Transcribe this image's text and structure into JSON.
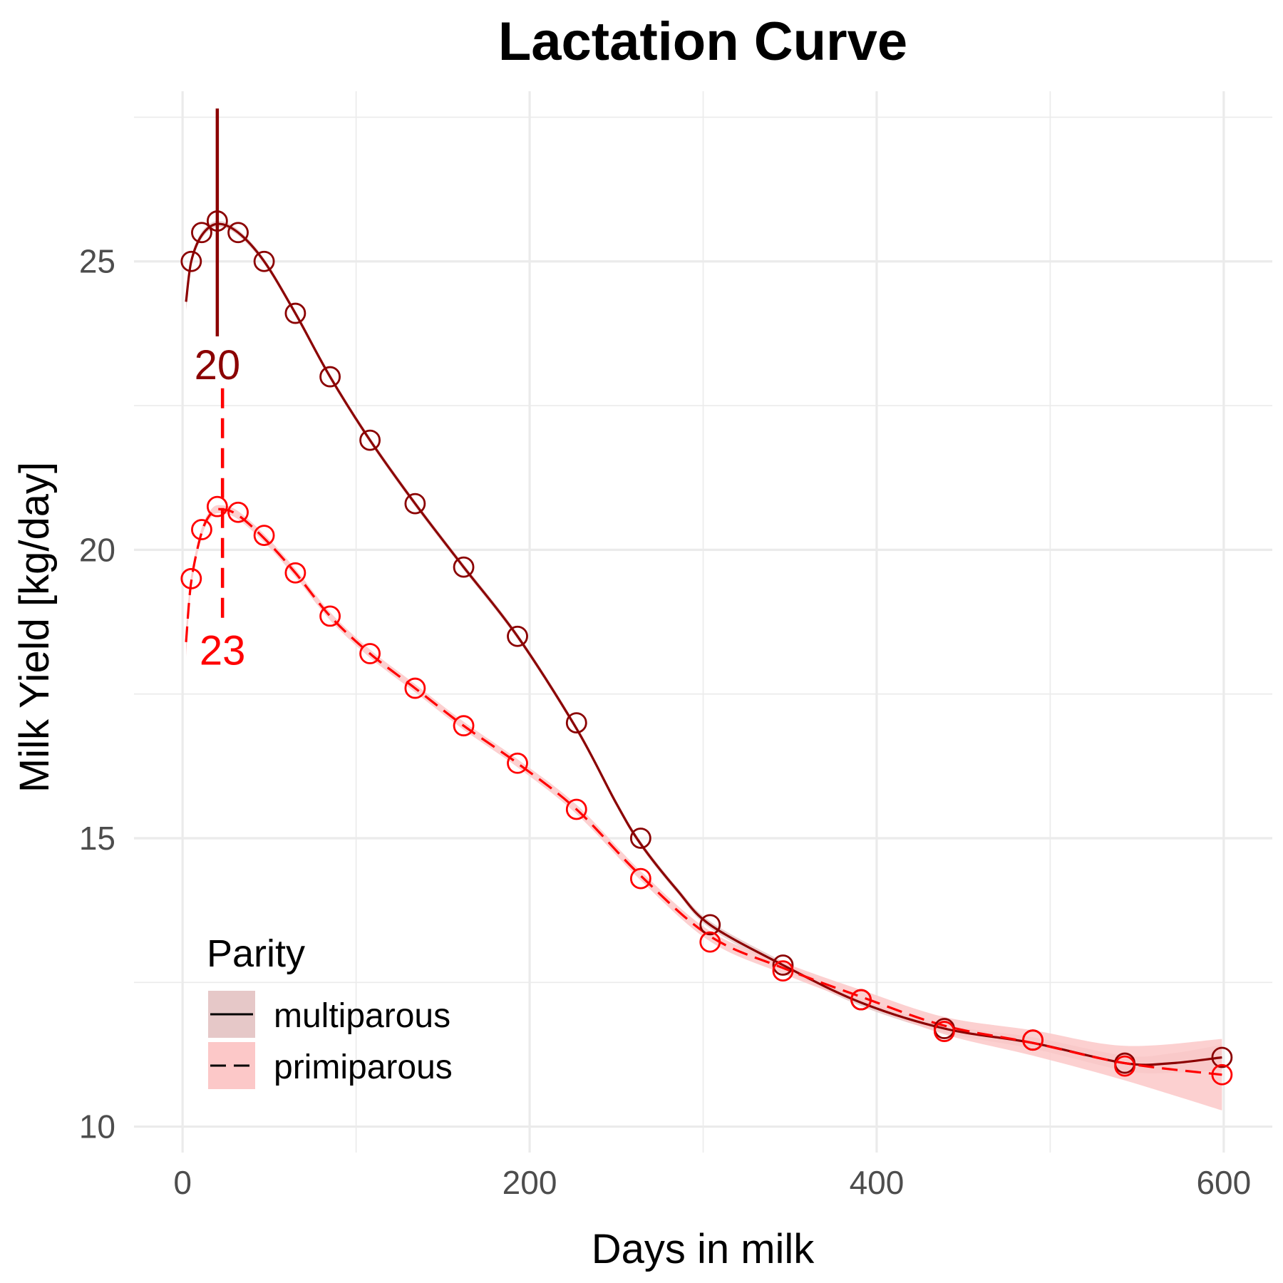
{
  "chart_data": {
    "type": "line",
    "title": "Lactation Curve",
    "xlabel": "Days in milk",
    "ylabel": "Milk Yield [kg/day]",
    "xlim": [
      -28,
      628
    ],
    "ylim": [
      9.55,
      27.95
    ],
    "x_ticks": [
      0,
      200,
      400,
      600
    ],
    "x_tick_labels": [
      "0",
      "200",
      "400",
      "600"
    ],
    "y_ticks": [
      10,
      15,
      20,
      25
    ],
    "y_tick_labels": [
      "10",
      "15",
      "20",
      "25"
    ],
    "grid": true,
    "legend": {
      "title": "Parity",
      "position": "bottom-left"
    },
    "series": [
      {
        "name": "multiparous",
        "color": "#8B0000",
        "ribbon_color": "#e6c8c8",
        "linestyle": "solid",
        "points": {
          "x": [
            5,
            11,
            20,
            32,
            47,
            65,
            85,
            108,
            134,
            162,
            193,
            227,
            264,
            304,
            346,
            391,
            439,
            490,
            543,
            599
          ],
          "y": [
            25.0,
            25.5,
            25.7,
            25.5,
            25.0,
            24.1,
            23.0,
            21.9,
            20.8,
            19.7,
            18.5,
            17.0,
            15.0,
            13.5,
            12.8,
            12.2,
            11.7,
            11.5,
            11.1,
            11.2
          ]
        },
        "curve": {
          "x": [
            2,
            5,
            11,
            20,
            32,
            47,
            65,
            85,
            108,
            134,
            162,
            193,
            227,
            250,
            264,
            285,
            304,
            346,
            391,
            439,
            490,
            543,
            570,
            599
          ],
          "y": [
            24.3,
            25.0,
            25.45,
            25.65,
            25.5,
            25.0,
            24.1,
            23.0,
            21.9,
            20.8,
            19.7,
            18.5,
            16.9,
            15.6,
            14.9,
            14.1,
            13.5,
            12.8,
            12.15,
            11.7,
            11.45,
            11.1,
            11.1,
            11.2
          ]
        },
        "ribbon_halfwidth": [
          0.15,
          0.08,
          0.06,
          0.05,
          0.05,
          0.05,
          0.05,
          0.05,
          0.05,
          0.05,
          0.05,
          0.05,
          0.05,
          0.05,
          0.05,
          0.05,
          0.06,
          0.06,
          0.06,
          0.07,
          0.1,
          0.13,
          0.17,
          0.22
        ],
        "peak": {
          "day": 20,
          "label": "20",
          "line_top": 27.65,
          "line_bottom": 23.7
        }
      },
      {
        "name": "primiparous",
        "color": "#FF0000",
        "ribbon_color": "#fcc8c8",
        "linestyle": "dashed",
        "points": {
          "x": [
            5,
            11,
            20,
            32,
            47,
            65,
            85,
            108,
            134,
            162,
            193,
            227,
            264,
            304,
            346,
            391,
            439,
            490,
            543,
            599
          ],
          "y": [
            19.5,
            20.35,
            20.75,
            20.65,
            20.25,
            19.6,
            18.85,
            18.2,
            17.6,
            16.95,
            16.3,
            15.5,
            14.3,
            13.2,
            12.7,
            12.2,
            11.65,
            11.5,
            11.05,
            10.9
          ]
        },
        "curve": {
          "x": [
            2,
            5,
            11,
            17,
            23,
            32,
            47,
            65,
            85,
            108,
            134,
            162,
            193,
            227,
            264,
            304,
            346,
            391,
            439,
            490,
            543,
            599
          ],
          "y": [
            18.4,
            19.45,
            20.3,
            20.65,
            20.7,
            20.6,
            20.2,
            19.6,
            18.85,
            18.2,
            17.6,
            16.95,
            16.3,
            15.5,
            14.35,
            13.3,
            12.75,
            12.25,
            11.75,
            11.45,
            11.1,
            10.9
          ]
        },
        "ribbon_halfwidth": [
          0.25,
          0.12,
          0.08,
          0.07,
          0.07,
          0.07,
          0.07,
          0.07,
          0.07,
          0.07,
          0.07,
          0.07,
          0.07,
          0.08,
          0.08,
          0.09,
          0.1,
          0.12,
          0.15,
          0.22,
          0.3,
          0.62
        ],
        "peak": {
          "day": 23,
          "label": "23",
          "line_top": 22.8,
          "line_bottom": 18.75
        }
      }
    ]
  }
}
